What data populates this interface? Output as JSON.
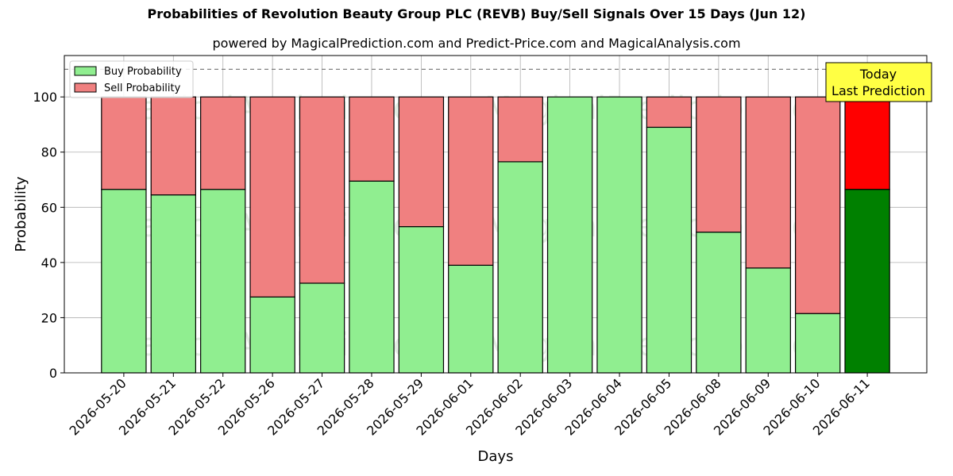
{
  "chart_data": {
    "type": "bar",
    "stacked": true,
    "title": "Probabilities of Revolution Beauty Group PLC (REVB) Buy/Sell Signals Over 15 Days (Jun 12)",
    "subtitle": "powered by MagicalPrediction.com and Predict-Price.com and MagicalAnalysis.com",
    "xlabel": "Days",
    "ylabel": "Probability",
    "ylim": [
      0,
      115
    ],
    "yticks": [
      0,
      20,
      40,
      60,
      80,
      100
    ],
    "grid": true,
    "legend_position": "top-left",
    "reference_line": 110,
    "categories": [
      "2026-05-20",
      "2026-05-21",
      "2026-05-22",
      "2026-05-26",
      "2026-05-27",
      "2026-05-28",
      "2026-05-29",
      "2026-06-01",
      "2026-06-02",
      "2026-06-03",
      "2026-06-04",
      "2026-06-05",
      "2026-06-08",
      "2026-06-09",
      "2026-06-10",
      "2026-06-11"
    ],
    "series": [
      {
        "name": "Buy Probability",
        "color": "#90ee90",
        "highlight_color": "#008000",
        "values": [
          66.5,
          64.5,
          66.5,
          27.5,
          32.5,
          69.5,
          53.0,
          39.0,
          76.5,
          100,
          100,
          89.0,
          51.0,
          38.0,
          21.5,
          66.5
        ]
      },
      {
        "name": "Sell Probability",
        "color": "#f08080",
        "highlight_color": "#ff0000",
        "values": [
          33.5,
          35.5,
          33.5,
          72.5,
          67.5,
          30.5,
          47.0,
          61.0,
          23.5,
          0,
          0,
          11.0,
          49.0,
          62.0,
          78.5,
          33.5
        ]
      }
    ],
    "highlight_index": 15,
    "annotation": {
      "line1": "Today",
      "line2": "Last Prediction",
      "color": "#ffff44"
    },
    "watermarks": [
      "MagicalAnalysis.com",
      "MagicalPrediction.com"
    ]
  }
}
